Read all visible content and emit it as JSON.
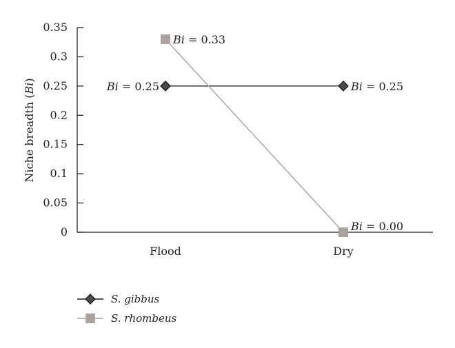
{
  "chart_data": {
    "type": "line",
    "categories": [
      "Flood",
      "Dry"
    ],
    "ylabel_prefix": "Niche breadth (",
    "ylabel_italic": "Bi",
    "ylabel_suffix": ")",
    "ylim": [
      0,
      0.35
    ],
    "yticks": [
      "0",
      "0.05",
      "0.1",
      "0.15",
      "0.2",
      "0.25",
      "0.3",
      "0.35"
    ],
    "grid": false,
    "legend_position": "bottom-left",
    "label_prefix": "Bi",
    "label_equals": " = ",
    "series": [
      {
        "name": "S. gibbus",
        "values": [
          0.25,
          0.25
        ],
        "value_labels": [
          "0.25",
          "0.25"
        ],
        "color": "#1f1f1f",
        "marker_color": "#4a4a4a",
        "marker": "diamond"
      },
      {
        "name": "S. rhombeus",
        "values": [
          0.33,
          0.0
        ],
        "value_labels": [
          "0.33",
          "0.00"
        ],
        "color": "#a9a19f",
        "marker_color": "#aaa3a0",
        "marker": "square"
      }
    ]
  }
}
